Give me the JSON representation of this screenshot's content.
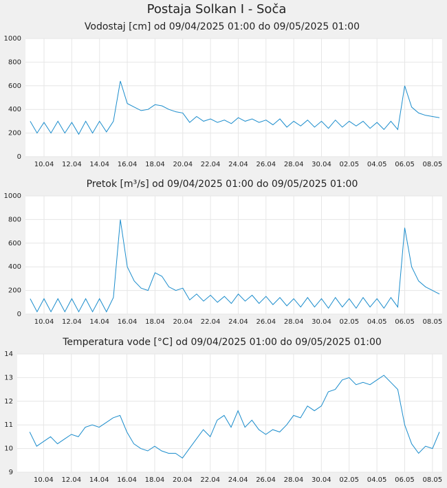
{
  "title": "Postaja Solkan I - Soča",
  "chart_data": [
    {
      "type": "line",
      "title": "Vodostaj [cm] od 09/04/2025 01:00 do 09/05/2025 01:00",
      "x": [
        9,
        9.5,
        10,
        10.5,
        11,
        11.5,
        12,
        12.5,
        13,
        13.5,
        14,
        14.5,
        15,
        15.5,
        16,
        16.5,
        17,
        17.5,
        18,
        18.5,
        19,
        19.5,
        20,
        20.5,
        21,
        21.5,
        22,
        22.5,
        23,
        23.5,
        24,
        24.5,
        25,
        25.5,
        26,
        26.5,
        27,
        27.5,
        28,
        28.5,
        29,
        29.5,
        30,
        30.5,
        31,
        31.5,
        32,
        32.5,
        33,
        33.5,
        34,
        34.5,
        35,
        35.5,
        36,
        36.5,
        37,
        37.5,
        38,
        38.5
      ],
      "values": [
        300,
        200,
        290,
        200,
        300,
        200,
        290,
        190,
        300,
        200,
        300,
        210,
        300,
        640,
        450,
        420,
        390,
        400,
        440,
        430,
        400,
        380,
        370,
        290,
        340,
        300,
        320,
        290,
        310,
        280,
        330,
        300,
        320,
        290,
        310,
        270,
        320,
        250,
        300,
        260,
        310,
        250,
        300,
        240,
        310,
        250,
        300,
        260,
        300,
        240,
        290,
        230,
        300,
        230,
        600,
        420,
        370,
        350,
        340,
        330
      ],
      "color": "#1a8ccc",
      "xlim": [
        8.66,
        38.7
      ],
      "ylim": [
        0,
        1000
      ],
      "yticks": [
        0,
        200,
        400,
        600,
        800,
        1000
      ],
      "xticks": [
        {
          "value": 10,
          "label": "10.04"
        },
        {
          "value": 12,
          "label": "12.04"
        },
        {
          "value": 14,
          "label": "14.04"
        },
        {
          "value": 16,
          "label": "16.04"
        },
        {
          "value": 18,
          "label": "18.04"
        },
        {
          "value": 20,
          "label": "20.04"
        },
        {
          "value": 22,
          "label": "22.04"
        },
        {
          "value": 24,
          "label": "24.04"
        },
        {
          "value": 26,
          "label": "26.04"
        },
        {
          "value": 28,
          "label": "28.04"
        },
        {
          "value": 30,
          "label": "30.04"
        },
        {
          "value": 32,
          "label": "02.05"
        },
        {
          "value": 34,
          "label": "04.05"
        },
        {
          "value": 36,
          "label": "06.05"
        },
        {
          "value": 38,
          "label": "08.05"
        }
      ],
      "grid": true
    },
    {
      "type": "line",
      "title": "Pretok [m³/s] od 09/04/2025 01:00 do 09/05/2025 01:00",
      "x": [
        9,
        9.5,
        10,
        10.5,
        11,
        11.5,
        12,
        12.5,
        13,
        13.5,
        14,
        14.5,
        15,
        15.5,
        16,
        16.5,
        17,
        17.5,
        18,
        18.5,
        19,
        19.5,
        20,
        20.5,
        21,
        21.5,
        22,
        22.5,
        23,
        23.5,
        24,
        24.5,
        25,
        25.5,
        26,
        26.5,
        27,
        27.5,
        28,
        28.5,
        29,
        29.5,
        30,
        30.5,
        31,
        31.5,
        32,
        32.5,
        33,
        33.5,
        34,
        34.5,
        35,
        35.5,
        36,
        36.5,
        37,
        37.5,
        38,
        38.5
      ],
      "values": [
        130,
        20,
        130,
        20,
        130,
        20,
        130,
        20,
        130,
        20,
        130,
        20,
        140,
        800,
        400,
        280,
        220,
        200,
        350,
        320,
        230,
        200,
        220,
        120,
        170,
        110,
        160,
        100,
        150,
        90,
        170,
        110,
        160,
        90,
        150,
        80,
        140,
        70,
        130,
        60,
        140,
        60,
        130,
        50,
        140,
        60,
        130,
        50,
        140,
        60,
        130,
        50,
        140,
        60,
        730,
        400,
        280,
        230,
        200,
        170
      ],
      "color": "#1a8ccc",
      "xlim": [
        8.66,
        38.7
      ],
      "ylim": [
        0,
        1000
      ],
      "yticks": [
        0,
        200,
        400,
        600,
        800,
        1000
      ],
      "xticks": [
        {
          "value": 10,
          "label": "10.04"
        },
        {
          "value": 12,
          "label": "12.04"
        },
        {
          "value": 14,
          "label": "14.04"
        },
        {
          "value": 16,
          "label": "16.04"
        },
        {
          "value": 18,
          "label": "18.04"
        },
        {
          "value": 20,
          "label": "20.04"
        },
        {
          "value": 22,
          "label": "22.04"
        },
        {
          "value": 24,
          "label": "24.04"
        },
        {
          "value": 26,
          "label": "26.04"
        },
        {
          "value": 28,
          "label": "28.04"
        },
        {
          "value": 30,
          "label": "30.04"
        },
        {
          "value": 32,
          "label": "02.05"
        },
        {
          "value": 34,
          "label": "04.05"
        },
        {
          "value": 36,
          "label": "06.05"
        },
        {
          "value": 38,
          "label": "08.05"
        }
      ],
      "grid": true
    },
    {
      "type": "line",
      "title": "Temperatura vode [°C] od 09/04/2025 01:00 do 09/05/2025 01:00",
      "x": [
        9,
        9.5,
        10,
        10.5,
        11,
        11.5,
        12,
        12.5,
        13,
        13.5,
        14,
        14.5,
        15,
        15.5,
        16,
        16.5,
        17,
        17.5,
        18,
        18.5,
        19,
        19.5,
        20,
        20.5,
        21,
        21.5,
        22,
        22.5,
        23,
        23.5,
        24,
        24.5,
        25,
        25.5,
        26,
        26.5,
        27,
        27.5,
        28,
        28.5,
        29,
        29.5,
        30,
        30.5,
        31,
        31.5,
        32,
        32.5,
        33,
        33.5,
        34,
        34.5,
        35,
        35.5,
        36,
        36.5,
        37,
        37.5,
        38,
        38.5
      ],
      "values": [
        10.7,
        10.1,
        10.3,
        10.5,
        10.2,
        10.4,
        10.6,
        10.5,
        10.9,
        11.0,
        10.9,
        11.1,
        11.3,
        11.4,
        10.7,
        10.2,
        10.0,
        9.9,
        10.1,
        9.9,
        9.8,
        9.8,
        9.6,
        10.0,
        10.4,
        10.8,
        10.5,
        11.2,
        11.4,
        10.9,
        11.6,
        10.9,
        11.2,
        10.8,
        10.6,
        10.8,
        10.7,
        11.0,
        11.4,
        11.3,
        11.8,
        11.6,
        11.8,
        12.4,
        12.5,
        12.9,
        13.0,
        12.7,
        12.8,
        12.7,
        12.9,
        13.1,
        12.8,
        12.5,
        11.0,
        10.2,
        9.8,
        10.1,
        10.0,
        10.7
      ],
      "color": "#1a8ccc",
      "xlim": [
        8.1,
        38.7
      ],
      "ylim": [
        9,
        14
      ],
      "yticks": [
        9,
        10,
        11,
        12,
        13,
        14
      ],
      "xticks": [
        {
          "value": 10,
          "label": "10.04"
        },
        {
          "value": 12,
          "label": "12.04"
        },
        {
          "value": 14,
          "label": "14.04"
        },
        {
          "value": 16,
          "label": "16.04"
        },
        {
          "value": 18,
          "label": "18.04"
        },
        {
          "value": 20,
          "label": "20.04"
        },
        {
          "value": 22,
          "label": "22.04"
        },
        {
          "value": 24,
          "label": "24.04"
        },
        {
          "value": 26,
          "label": "26.04"
        },
        {
          "value": 28,
          "label": "28.04"
        },
        {
          "value": 30,
          "label": "30.04"
        },
        {
          "value": 32,
          "label": "02.05"
        },
        {
          "value": 34,
          "label": "04.05"
        },
        {
          "value": 36,
          "label": "06.05"
        },
        {
          "value": 38,
          "label": "08.05"
        }
      ],
      "grid": true
    }
  ]
}
